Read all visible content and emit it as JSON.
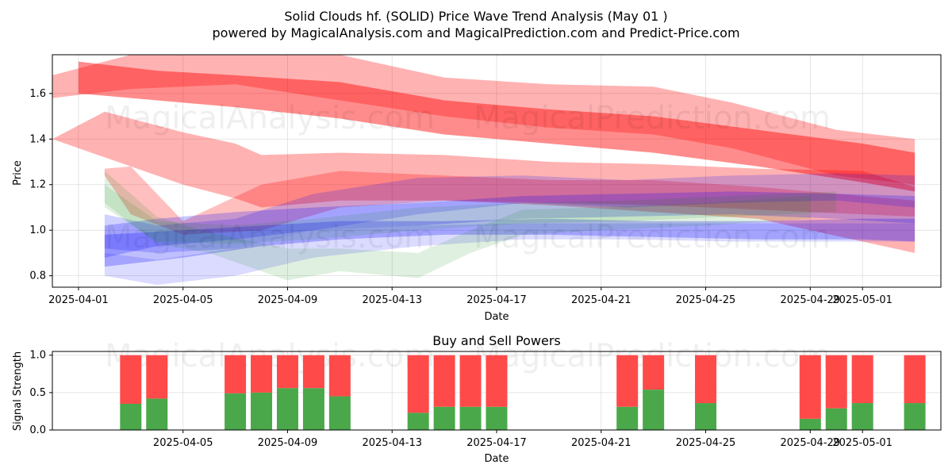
{
  "title_line1": "Solid Clouds hf. (SOLID) Price Wave Trend Analysis (May 01 )",
  "title_line2": "powered by MagicalAnalysis.com and MagicalPrediction.com and Predict-Price.com",
  "watermarks": [
    "MagicalAnalysis.com",
    "MagicalPrediction.com"
  ],
  "colors": {
    "red": "#ff0000",
    "blue": "#0000ff",
    "green": "#008000",
    "buy": "#4aa84a",
    "sell": "#ff4a4a"
  },
  "chart_data": [
    {
      "type": "area",
      "xlabel": "Date",
      "ylabel": "Price",
      "xlim": [
        "2025-03-31",
        "2025-05-04"
      ],
      "ylim": [
        0.75,
        1.77
      ],
      "x_ticks": [
        "2025-04-01",
        "2025-04-05",
        "2025-04-09",
        "2025-04-13",
        "2025-04-17",
        "2025-04-21",
        "2025-04-25",
        "2025-04-29",
        "2025-05-01"
      ],
      "y_ticks": [
        "0.8",
        "1.0",
        "1.2",
        "1.4",
        "1.6"
      ],
      "grid": true,
      "bands": [
        {
          "color": "red",
          "opacity": 0.3,
          "points": [
            [
              "2025-03-31",
              1.68,
              1.58
            ],
            [
              "2025-04-03",
              1.77,
              1.62
            ],
            [
              "2025-04-07",
              1.77,
              1.64
            ],
            [
              "2025-04-11",
              1.77,
              1.57
            ],
            [
              "2025-04-15",
              1.67,
              1.5
            ],
            [
              "2025-04-19",
              1.64,
              1.45
            ],
            [
              "2025-04-23",
              1.63,
              1.42
            ],
            [
              "2025-04-26",
              1.56,
              1.36
            ],
            [
              "2025-04-30",
              1.44,
              1.24
            ],
            [
              "2025-05-03",
              1.4,
              1.2
            ]
          ]
        },
        {
          "color": "red",
          "opacity": 0.45,
          "points": [
            [
              "2025-04-01",
              1.74,
              1.6
            ],
            [
              "2025-04-04",
              1.7,
              1.57
            ],
            [
              "2025-04-07",
              1.68,
              1.54
            ],
            [
              "2025-04-11",
              1.65,
              1.49
            ],
            [
              "2025-04-15",
              1.57,
              1.42
            ],
            [
              "2025-04-19",
              1.53,
              1.38
            ],
            [
              "2025-04-23",
              1.5,
              1.34
            ],
            [
              "2025-04-27",
              1.44,
              1.28
            ],
            [
              "2025-05-01",
              1.38,
              1.21
            ],
            [
              "2025-05-03",
              1.34,
              1.17
            ]
          ]
        },
        {
          "color": "red",
          "opacity": 0.3,
          "points": [
            [
              "2025-03-31",
              1.4,
              1.4
            ],
            [
              "2025-04-02",
              1.52,
              1.32
            ],
            [
              "2025-04-05",
              1.43,
              1.2
            ],
            [
              "2025-04-07",
              1.38,
              1.14
            ],
            [
              "2025-04-08",
              1.33,
              1.1
            ],
            [
              "2025-04-11",
              1.34,
              1.13
            ],
            [
              "2025-04-15",
              1.33,
              1.13
            ],
            [
              "2025-04-19",
              1.3,
              1.11
            ],
            [
              "2025-04-23",
              1.29,
              1.08
            ],
            [
              "2025-04-27",
              1.27,
              1.05
            ],
            [
              "2025-05-01",
              1.26,
              0.95
            ],
            [
              "2025-05-03",
              1.19,
              0.9
            ]
          ]
        },
        {
          "color": "red",
          "opacity": 0.25,
          "points": [
            [
              "2025-04-02",
              1.27,
              1.24
            ],
            [
              "2025-04-03",
              1.28,
              1.07
            ],
            [
              "2025-04-05",
              1.04,
              0.98
            ],
            [
              "2025-04-08",
              1.2,
              1.0
            ],
            [
              "2025-04-11",
              1.26,
              1.1
            ],
            [
              "2025-04-15",
              1.24,
              1.13
            ],
            [
              "2025-04-19",
              1.22,
              1.12
            ],
            [
              "2025-04-23",
              1.22,
              1.11
            ],
            [
              "2025-04-27",
              1.19,
              1.09
            ],
            [
              "2025-05-01",
              1.15,
              1.07
            ],
            [
              "2025-05-03",
              1.13,
              1.06
            ]
          ]
        },
        {
          "color": "blue",
          "opacity": 0.18,
          "points": [
            [
              "2025-04-02",
              1.07,
              0.92
            ],
            [
              "2025-04-04",
              1.02,
              0.9
            ],
            [
              "2025-04-07",
              1.05,
              0.92
            ],
            [
              "2025-04-10",
              1.16,
              1.0
            ],
            [
              "2025-04-14",
              1.23,
              1.07
            ],
            [
              "2025-04-18",
              1.24,
              1.12
            ],
            [
              "2025-04-22",
              1.22,
              1.1
            ],
            [
              "2025-04-26",
              1.24,
              1.12
            ],
            [
              "2025-04-30",
              1.25,
              1.13
            ],
            [
              "2025-05-03",
              1.24,
              1.1
            ]
          ]
        },
        {
          "color": "blue",
          "opacity": 0.22,
          "points": [
            [
              "2025-04-02",
              1.02,
              0.88
            ],
            [
              "2025-04-04",
              1.05,
              0.93
            ],
            [
              "2025-04-07",
              1.08,
              0.96
            ],
            [
              "2025-04-10",
              1.1,
              1.0
            ],
            [
              "2025-04-14",
              1.12,
              1.02
            ],
            [
              "2025-04-18",
              1.15,
              1.05
            ],
            [
              "2025-04-22",
              1.16,
              1.06
            ],
            [
              "2025-04-26",
              1.17,
              1.07
            ],
            [
              "2025-04-30",
              1.16,
              1.05
            ],
            [
              "2025-05-03",
              1.15,
              1.03
            ]
          ]
        },
        {
          "color": "blue",
          "opacity": 0.25,
          "points": [
            [
              "2025-04-02",
              0.98,
              0.84
            ],
            [
              "2025-04-05",
              1.0,
              0.88
            ],
            [
              "2025-04-08",
              1.02,
              0.93
            ],
            [
              "2025-04-11",
              1.04,
              0.96
            ],
            [
              "2025-04-15",
              1.04,
              0.98
            ],
            [
              "2025-04-19",
              1.05,
              0.98
            ],
            [
              "2025-04-23",
              1.04,
              0.97
            ],
            [
              "2025-04-27",
              1.04,
              0.96
            ],
            [
              "2025-05-01",
              1.05,
              0.96
            ],
            [
              "2025-05-03",
              1.05,
              0.95
            ]
          ]
        },
        {
          "color": "blue",
          "opacity": 0.14,
          "points": [
            [
              "2025-04-02",
              0.9,
              0.8
            ],
            [
              "2025-04-04",
              0.87,
              0.76
            ],
            [
              "2025-04-07",
              0.92,
              0.8
            ],
            [
              "2025-04-10",
              1.0,
              0.88
            ],
            [
              "2025-04-14",
              1.02,
              0.93
            ],
            [
              "2025-04-18",
              1.03,
              0.96
            ],
            [
              "2025-04-22",
              1.03,
              0.96
            ],
            [
              "2025-04-26",
              1.03,
              0.95
            ],
            [
              "2025-04-30",
              1.03,
              0.95
            ],
            [
              "2025-05-03",
              1.03,
              0.95
            ]
          ]
        },
        {
          "color": "green",
          "opacity": 0.12,
          "points": [
            [
              "2025-04-02",
              1.26,
              1.12
            ],
            [
              "2025-04-04",
              1.06,
              0.94
            ],
            [
              "2025-04-06",
              0.99,
              0.9
            ],
            [
              "2025-04-09",
              0.92,
              0.78
            ],
            [
              "2025-04-11",
              0.92,
              0.82
            ],
            [
              "2025-04-14",
              0.9,
              0.79
            ],
            [
              "2025-04-16",
              1.0,
              0.9
            ],
            [
              "2025-04-18",
              1.09,
              0.98
            ],
            [
              "2025-04-21",
              1.1,
              1.0
            ],
            [
              "2025-04-25",
              1.12,
              1.02
            ],
            [
              "2025-04-29",
              1.15,
              1.05
            ]
          ]
        },
        {
          "color": "green",
          "opacity": 0.12,
          "points": [
            [
              "2025-04-02",
              1.2,
              1.1
            ],
            [
              "2025-04-04",
              1.04,
              0.95
            ],
            [
              "2025-04-07",
              1.02,
              0.94
            ],
            [
              "2025-04-10",
              1.05,
              0.96
            ],
            [
              "2025-04-14",
              1.1,
              1.0
            ],
            [
              "2025-04-18",
              1.12,
              1.03
            ],
            [
              "2025-04-22",
              1.13,
              1.04
            ],
            [
              "2025-04-26",
              1.15,
              1.06
            ],
            [
              "2025-04-30",
              1.17,
              1.08
            ]
          ]
        }
      ]
    },
    {
      "type": "bar",
      "title": "Buy and Sell Powers",
      "xlabel": "Date",
      "ylabel": "Signal Strength",
      "ylim": [
        0,
        1.05
      ],
      "y_ticks": [
        "0.0",
        "0.5",
        "1.0"
      ],
      "x_ticks": [
        "2025-04-05",
        "2025-04-09",
        "2025-04-13",
        "2025-04-17",
        "2025-04-21",
        "2025-04-25",
        "2025-04-29",
        "2025-05-01"
      ],
      "xlim": [
        "2025-03-31",
        "2025-05-04"
      ],
      "grid": true,
      "categories": [
        "2025-04-03",
        "2025-04-04",
        "2025-04-07",
        "2025-04-08",
        "2025-04-09",
        "2025-04-10",
        "2025-04-11",
        "2025-04-14",
        "2025-04-15",
        "2025-04-16",
        "2025-04-17",
        "2025-04-22",
        "2025-04-23",
        "2025-04-25",
        "2025-04-29",
        "2025-04-30",
        "2025-05-01",
        "2025-05-03"
      ],
      "series": [
        {
          "name": "buy",
          "values": [
            0.35,
            0.42,
            0.49,
            0.5,
            0.56,
            0.56,
            0.45,
            0.23,
            0.31,
            0.31,
            0.31,
            0.31,
            0.54,
            0.36,
            0.15,
            0.29,
            0.36,
            0.36
          ]
        },
        {
          "name": "sell",
          "values": [
            0.65,
            0.58,
            0.51,
            0.5,
            0.44,
            0.44,
            0.55,
            0.77,
            0.69,
            0.69,
            0.69,
            0.69,
            0.46,
            0.64,
            0.85,
            0.71,
            0.64,
            0.64
          ]
        }
      ]
    }
  ]
}
